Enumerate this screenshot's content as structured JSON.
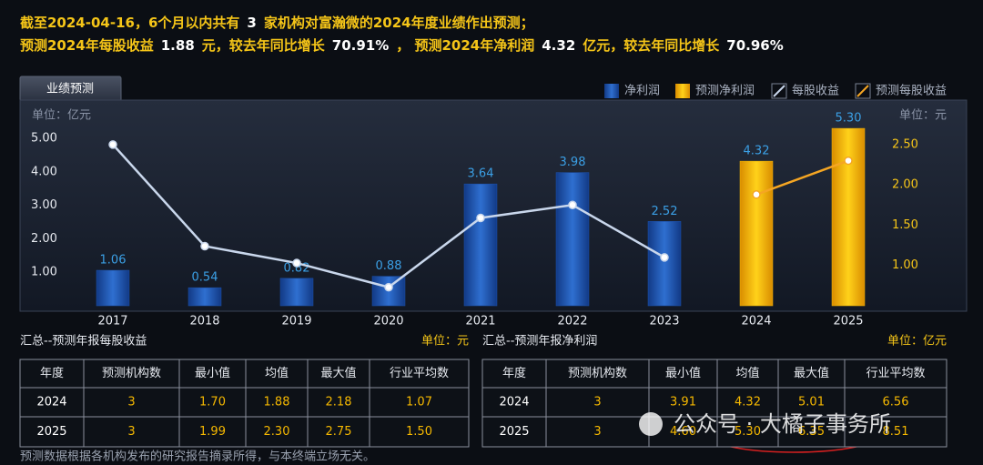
{
  "header": {
    "line1": [
      "截至2024-04-16，6个月以内共有",
      "3",
      "家机构对富瀚微的2024年度业绩作出预测；"
    ],
    "line2": [
      "预测2024年每股收益",
      "1.88",
      "元，较去年同比增长",
      "70.91%",
      "， 预测2024年净利润",
      "4.32",
      "亿元，较去年同比增长",
      "70.96%"
    ]
  },
  "tab": "业绩预测",
  "chart_data": {
    "type": "combo",
    "categories": [
      "2017",
      "2018",
      "2019",
      "2020",
      "2021",
      "2022",
      "2023",
      "2024",
      "2025"
    ],
    "series": [
      {
        "name": "净利润",
        "type": "bar",
        "color": "#1d52ad",
        "values": [
          1.06,
          0.54,
          0.82,
          0.88,
          3.64,
          3.98,
          2.52,
          null,
          null
        ]
      },
      {
        "name": "预测净利润",
        "type": "bar",
        "color": "#f2b705",
        "values": [
          null,
          null,
          null,
          null,
          null,
          null,
          null,
          4.32,
          5.3
        ],
        "value_labels": [
          null,
          null,
          null,
          null,
          null,
          null,
          null,
          "4.32",
          "5.30"
        ]
      },
      {
        "name": "每股收益",
        "type": "line",
        "axis": "y2",
        "color": "#c9d7ec",
        "values": [
          2.5,
          1.24,
          1.03,
          0.73,
          1.59,
          1.75,
          1.1,
          null,
          null
        ]
      },
      {
        "name": "预测每股收益",
        "type": "line",
        "axis": "y2",
        "color": "#f5a623",
        "values": [
          null,
          null,
          null,
          null,
          null,
          null,
          null,
          1.88,
          2.3
        ]
      }
    ],
    "ylim": [
      0,
      5.9
    ],
    "yticks": [
      {
        "value": 1,
        "label": "1.00"
      },
      {
        "value": 2,
        "label": "2.00"
      },
      {
        "value": 3,
        "label": "3.00"
      },
      {
        "value": 4,
        "label": "4.00"
      },
      {
        "value": 5,
        "label": "5.00"
      }
    ],
    "y2lim": [
      0.5,
      2.95
    ],
    "y2ticks": [
      {
        "value": 1,
        "label": "1.00"
      },
      {
        "value": 1.5,
        "label": "1.50"
      },
      {
        "value": 2,
        "label": "2.00"
      },
      {
        "value": 2.5,
        "label": "2.50"
      }
    ],
    "y_unit": "单位：亿元",
    "y2_unit": "单位：元",
    "legend": "top-right"
  },
  "tables": [
    {
      "title": "汇总--预测年报每股收益",
      "unit": "单位：元",
      "columns": [
        "年度",
        "预测机构数",
        "最小值",
        "均值",
        "最大值",
        "行业平均数"
      ],
      "rows": [
        [
          "2024",
          "3",
          "1.70",
          "1.88",
          "2.18",
          "1.07"
        ],
        [
          "2025",
          "3",
          "1.99",
          "2.30",
          "2.75",
          "1.50"
        ]
      ]
    },
    {
      "title": "汇总--预测年报净利润",
      "unit": "单位：亿元",
      "columns": [
        "年度",
        "预测机构数",
        "最小值",
        "均值",
        "最大值",
        "行业平均数"
      ],
      "rows": [
        [
          "2024",
          "3",
          "3.91",
          "4.32",
          "5.01",
          "6.56"
        ],
        [
          "2025",
          "3",
          "4.60",
          "5.30",
          "6.35",
          "8.51"
        ]
      ]
    }
  ],
  "footnote": "预测数据根据各机构发布的研究报告摘录所得，与本终端立场无关。",
  "watermark": "公众号 · 大橘子事务所"
}
